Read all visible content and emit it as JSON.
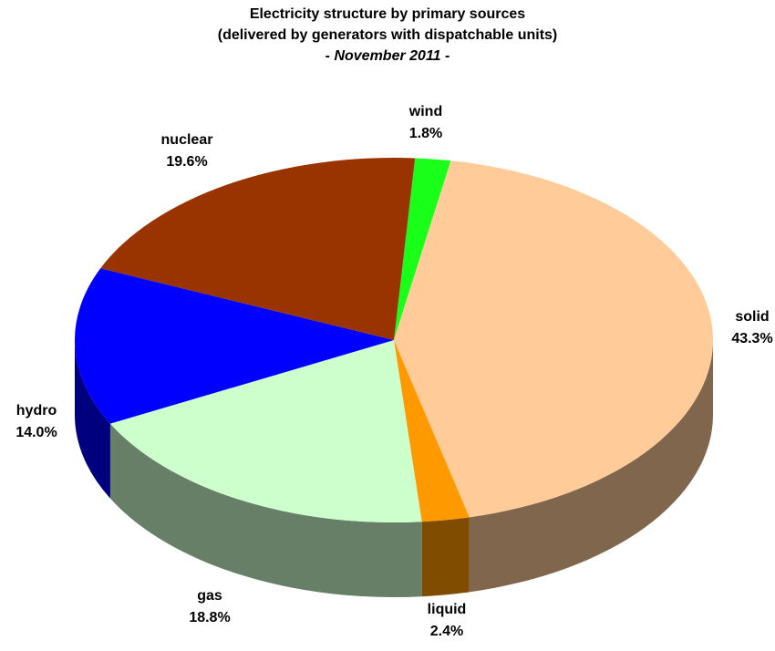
{
  "chart_data": {
    "type": "pie3d",
    "title": "Electricity structure by primary sources",
    "subtitle": "(delivered by generators with dispatchable units)",
    "period": "- November 2011 -",
    "categories": [
      "wind",
      "solid",
      "liquid",
      "gas",
      "hydro",
      "nuclear"
    ],
    "values": [
      1.8,
      43.3,
      2.4,
      18.8,
      14.0,
      19.6
    ],
    "value_labels": [
      "1.8%",
      "43.3%",
      "2.4%",
      "18.8%",
      "14.0%",
      "19.6%"
    ],
    "colors": [
      "#1aff1a",
      "#ffcc99",
      "#ff9900",
      "#ccffcc",
      "#0000ff",
      "#993300"
    ]
  }
}
